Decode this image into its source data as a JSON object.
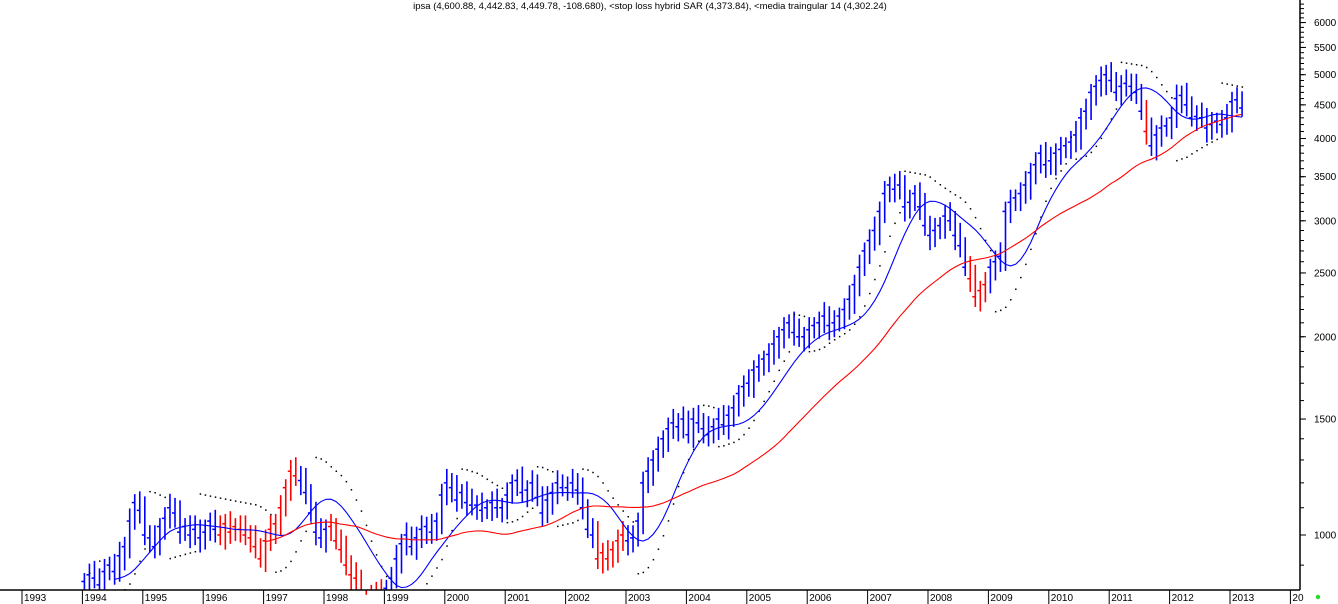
{
  "chart_data": {
    "type": "bar",
    "subtype": "ohlc-monthly",
    "title": "ipsa (4,600.88, 4,442.83, 4,449.78, -108.680), <stop loss hybrid SAR (4,373.84), <media traingular 14 (4,302.24)",
    "y_scale": "log",
    "ylim": [
      800,
      6500
    ],
    "y_ticks": [
      "1000",
      "1500",
      "2000",
      "2500",
      "3000",
      "3500",
      "4000",
      "4500",
      "5000",
      "5500",
      "6000"
    ],
    "x_ticks": [
      "1993",
      "1994",
      "1995",
      "1996",
      "1997",
      "1998",
      "1999",
      "2000",
      "2001",
      "2002",
      "2003",
      "2004",
      "2005",
      "2006",
      "2007",
      "2008",
      "2009",
      "2010",
      "2011",
      "2012",
      "2013",
      "20"
    ],
    "start": "1994-01",
    "closes": [
      850,
      870,
      860,
      840,
      880,
      900,
      880,
      930,
      960,
      1050,
      1120,
      1090,
      1000,
      990,
      960,
      1030,
      1060,
      1100,
      1080,
      1010,
      1030,
      1000,
      1020,
      990,
      1010,
      1050,
      1020,
      1000,
      1040,
      1010,
      1030,
      1020,
      1000,
      990,
      960,
      920,
      980,
      1020,
      1040,
      1100,
      1180,
      1250,
      1230,
      1210,
      1160,
      1080,
      1010,
      990,
      1020,
      1030,
      980,
      950,
      900,
      870,
      860,
      780,
      760,
      800,
      820,
      800,
      830,
      860,
      920,
      970,
      1000,
      960,
      990,
      1020,
      1030,
      1010,
      1050,
      1150,
      1200,
      1180,
      1130,
      1160,
      1120,
      1110,
      1110,
      1090,
      1100,
      1120,
      1100,
      1100,
      1150,
      1200,
      1210,
      1160,
      1170,
      1200,
      1140,
      1080,
      1130,
      1160,
      1200,
      1180,
      1180,
      1200,
      1170,
      1100,
      1020,
      1000,
      920,
      940,
      920,
      950,
      980,
      1000,
      980,
      990,
      1050,
      1200,
      1250,
      1300,
      1350,
      1400,
      1450,
      1480,
      1460,
      1500,
      1420,
      1500,
      1480,
      1450,
      1420,
      1460,
      1500,
      1470,
      1520,
      1560,
      1640,
      1680,
      1700,
      1780,
      1800,
      1850,
      1880,
      1950,
      2000,
      2050,
      2100,
      2030,
      2000,
      2000,
      2050,
      2080,
      2100,
      2150,
      2080,
      2100,
      2150,
      2200,
      2280,
      2400,
      2550,
      2700,
      2800,
      2900,
      3100,
      3300,
      3400,
      3350,
      3400,
      3150,
      3200,
      3300,
      3150,
      2950,
      2850,
      2900,
      2950,
      3050,
      3000,
      2850,
      2750,
      2550,
      2450,
      2300,
      2350,
      2400,
      2550,
      2600,
      2650,
      3100,
      3200,
      3250,
      3300,
      3400,
      3550,
      3650,
      3800,
      3650,
      3700,
      3800,
      3850,
      3900,
      3950,
      4050,
      4300,
      4400,
      4700,
      4800,
      4900,
      5000,
      4900,
      4700,
      4800,
      4850,
      4800,
      4700,
      4400,
      4100,
      3900,
      4050,
      4150,
      4180,
      4300,
      4600,
      4650,
      4500,
      4300,
      4320,
      4300,
      4150,
      4200,
      4250,
      4200,
      4300,
      4550,
      4580,
      4450
    ],
    "down_periods": [
      [
        "1996-04",
        "1997-07"
      ],
      [
        "1998-02",
        "1998-12"
      ],
      [
        "2002-07",
        "2002-12"
      ],
      [
        "2008-09",
        "2008-12"
      ],
      [
        "2011-08",
        "2011-08"
      ]
    ],
    "series": [
      {
        "name": "ipsa",
        "color": "#0000ff",
        "down_color": "#ff0000"
      },
      {
        "name": "stop loss hybrid SAR",
        "color": "#000000",
        "last": 4373.84
      },
      {
        "name": "media traingular 14",
        "color": "#0000ff",
        "last": 4302.24
      },
      {
        "name": "long moving average",
        "color": "#ff0000"
      }
    ],
    "last_bar": {
      "open": 4600.88,
      "high": 4600.88,
      "low": 4442.83,
      "close": 4449.78,
      "change": -108.68
    },
    "grid": false
  }
}
